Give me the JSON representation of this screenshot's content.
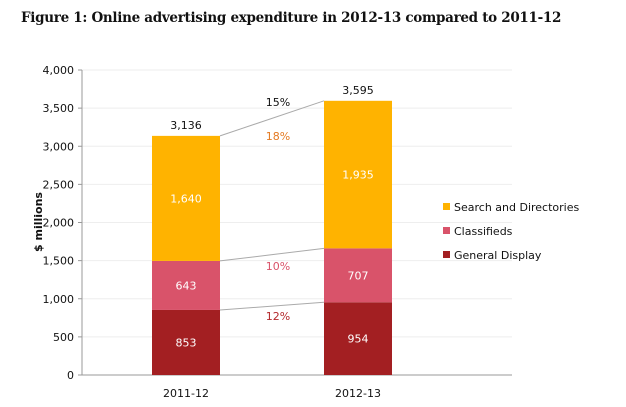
{
  "chart_data": {
    "type": "bar",
    "stacked": true,
    "title": "Figure 1: Online advertising expenditure in 2012-13 compared to 2011-12",
    "xlabel": "",
    "ylabel": "$ millions",
    "ylim": [
      0,
      4000
    ],
    "yticks": [
      0,
      500,
      1000,
      1500,
      2000,
      2500,
      3000,
      3500,
      4000
    ],
    "ytick_labels": [
      "0",
      "500",
      "1,000",
      "1,500",
      "2,000",
      "2,500",
      "3,000",
      "3,500",
      "4,000"
    ],
    "grid": true,
    "legend": "right",
    "categories": [
      "2011-12",
      "2012-13"
    ],
    "series": [
      {
        "name": "General Display",
        "values": [
          853,
          954
        ],
        "labels": [
          "853",
          "954"
        ],
        "color": "#A31F22",
        "growth": "12%",
        "growth_color": "#B3282C"
      },
      {
        "name": "Classifieds",
        "values": [
          643,
          707
        ],
        "labels": [
          "643",
          "707"
        ],
        "color": "#D9536A",
        "growth": "10%",
        "growth_color": "#D9536A"
      },
      {
        "name": "Search and Directories",
        "values": [
          1640,
          1935
        ],
        "labels": [
          "1,640",
          "1,935"
        ],
        "color": "#FFB300",
        "growth": "18%",
        "growth_color": "#E47A22"
      }
    ],
    "totals": [
      "3,136",
      "3,595"
    ],
    "total_growth": "15%"
  }
}
